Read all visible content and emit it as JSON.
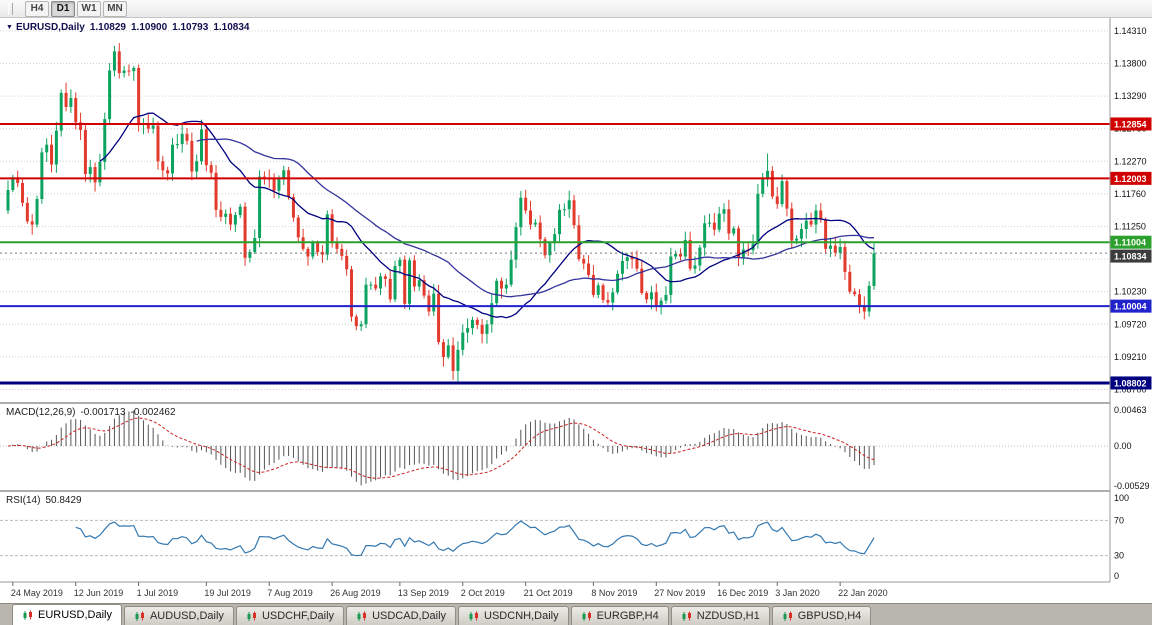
{
  "icons": {
    "symbol_marker": "▼"
  },
  "toolbar": {
    "timeframes": [
      "H4",
      "D1",
      "W1",
      "MN"
    ],
    "active": "D1"
  },
  "main_chart": {
    "header": {
      "symbol": "EURUSD,Daily",
      "open": "1.10829",
      "high": "1.10900",
      "low": "1.10793",
      "close": "1.10834"
    },
    "horizontal_lines": [
      {
        "price": 1.12854,
        "label": "1.12854",
        "color": "#d10000",
        "width": 2
      },
      {
        "price": 1.12003,
        "label": "1.12003",
        "color": "#d10000",
        "width": 2
      },
      {
        "price": 1.11004,
        "label": "1.11004",
        "color": "#2ca02c",
        "width": 2
      },
      {
        "price": 1.10004,
        "label": "1.10004",
        "color": "#2222cc",
        "width": 2
      },
      {
        "price": 1.08802,
        "label": "1.08802",
        "color": "#000080",
        "width": 3
      }
    ],
    "current_price": {
      "value": 1.10834,
      "label": "1.10834",
      "badge_color": "#3c3c3c"
    }
  },
  "macd_panel": {
    "name": "MACD(12,26,9)",
    "value_main": "-0.001713",
    "value_signal": "-0.002462",
    "axis_labels": [
      {
        "v": 0.00463,
        "t": "0.00463"
      },
      {
        "v": 0,
        "t": "0.00"
      },
      {
        "v": -0.00529,
        "t": "-0.00529"
      }
    ]
  },
  "rsi_panel": {
    "name": "RSI(14)",
    "value": "50.8429",
    "levels": [
      70,
      30
    ],
    "axis_labels": [
      {
        "v": 100,
        "t": "100"
      },
      {
        "v": 70,
        "t": "70"
      },
      {
        "v": 30,
        "t": "30"
      },
      {
        "v": 0,
        "t": "0"
      }
    ]
  },
  "tabbar": {
    "tabs": [
      {
        "label": "EURUSD,Daily",
        "active": true
      },
      {
        "label": "AUDUSD,Daily",
        "active": false
      },
      {
        "label": "USDCHF,Daily",
        "active": false
      },
      {
        "label": "USDCAD,Daily",
        "active": false
      },
      {
        "label": "USDCNH,Daily",
        "active": false
      },
      {
        "label": "EURGBP,H4",
        "active": false
      },
      {
        "label": "NZDUSD,H1",
        "active": false
      },
      {
        "label": "GBPUSD,H4",
        "active": false
      }
    ]
  },
  "colors": {
    "bull": "#0ba35f",
    "bear": "#e23a2c",
    "grid": "#d0d0d0",
    "ma1": "#000080",
    "ma2": "#34349c",
    "macd_hist": "#555555",
    "macd_signal": "#cc2222",
    "rsi": "#3579b1"
  },
  "chart_data": {
    "type": "candlestick",
    "symbol": "EURUSD",
    "timeframe": "Daily",
    "y_range": {
      "top": 1.14512,
      "bottom": 1.08504
    },
    "y_ticks": [
      "1.14310",
      "1.13800",
      "1.13290",
      "1.12780",
      "1.12270",
      "1.11760",
      "1.11250",
      "1.10740",
      "1.10230",
      "1.09720",
      "1.09210",
      "1.08700"
    ],
    "x_ticks": [
      {
        "label": "24 May 2019",
        "i": 1
      },
      {
        "label": "12 Jun 2019",
        "i": 14
      },
      {
        "label": "1 Jul 2019",
        "i": 27
      },
      {
        "label": "19 Jul 2019",
        "i": 41
      },
      {
        "label": "7 Aug 2019",
        "i": 54
      },
      {
        "label": "26 Aug 2019",
        "i": 67
      },
      {
        "label": "13 Sep 2019",
        "i": 81
      },
      {
        "label": "2 Oct 2019",
        "i": 94
      },
      {
        "label": "21 Oct 2019",
        "i": 107
      },
      {
        "label": "8 Nov 2019",
        "i": 121
      },
      {
        "label": "27 Nov 2019",
        "i": 134
      },
      {
        "label": "16 Dec 2019",
        "i": 147
      },
      {
        "label": "3 Jan 2020",
        "i": 159
      },
      {
        "label": "22 Jan 2020",
        "i": 172
      }
    ],
    "first_open": 1.115,
    "closes": [
      1.1182,
      1.1202,
      1.1193,
      1.1162,
      1.1133,
      1.1128,
      1.1168,
      1.1241,
      1.1253,
      1.1222,
      1.1275,
      1.1334,
      1.1312,
      1.1326,
      1.1288,
      1.1276,
      1.1207,
      1.1218,
      1.1194,
      1.1226,
      1.1293,
      1.1369,
      1.1399,
      1.1365,
      1.1369,
      1.1368,
      1.1373,
      1.1285,
      1.1286,
      1.1278,
      1.1283,
      1.1227,
      1.1213,
      1.1208,
      1.1253,
      1.1254,
      1.127,
      1.1259,
      1.1211,
      1.1227,
      1.1277,
      1.1221,
      1.1209,
      1.1151,
      1.114,
      1.1145,
      1.1128,
      1.1143,
      1.1156,
      1.1076,
      1.1085,
      1.1107,
      1.1203,
      1.12,
      1.1199,
      1.1181,
      1.1199,
      1.1213,
      1.1171,
      1.1139,
      1.1108,
      1.109,
      1.1078,
      1.1099,
      1.1085,
      1.1081,
      1.1144,
      1.1101,
      1.109,
      1.1079,
      1.1058,
      1.0984,
      1.0969,
      1.0972,
      1.1034,
      1.1034,
      1.1028,
      1.1047,
      1.1043,
      1.1011,
      1.1063,
      1.1073,
      1.1004,
      1.1072,
      1.1031,
      1.1041,
      1.1017,
      1.0992,
      1.102,
      1.0944,
      1.0921,
      1.0939,
      1.0899,
      1.0932,
      1.0959,
      1.0966,
      1.0979,
      1.0971,
      1.0957,
      1.0972,
      1.1005,
      1.104,
      1.1028,
      1.1034,
      1.1073,
      1.1124,
      1.117,
      1.115,
      1.1128,
      1.1131,
      1.1105,
      1.108,
      1.1099,
      1.1113,
      1.1151,
      1.1152,
      1.1166,
      1.1127,
      1.1074,
      1.1067,
      1.1049,
      1.1018,
      1.1033,
      1.101,
      1.1006,
      1.1022,
      1.1051,
      1.1071,
      1.1077,
      1.1074,
      1.1059,
      1.1021,
      1.1011,
      1.1022,
      1.1002,
      1.1009,
      1.1018,
      1.1078,
      1.1082,
      1.1078,
      1.1104,
      1.1059,
      1.1064,
      1.1092,
      1.113,
      1.1131,
      1.112,
      1.1145,
      1.1152,
      1.1114,
      1.1122,
      1.1077,
      1.1089,
      1.1088,
      1.1098,
      1.1176,
      1.1199,
      1.1212,
      1.1172,
      1.116,
      1.1196,
      1.1153,
      1.1103,
      1.1106,
      1.1121,
      1.1134,
      1.1128,
      1.115,
      1.1136,
      1.109,
      1.1095,
      1.1084,
      1.1093,
      1.1054,
      1.1023,
      1.1019,
      1.1,
      1.0992,
      1.1032,
      1.1083
    ],
    "wick_high_overrides": {
      "22": 1.1404,
      "23": 1.1412,
      "157": 1.1239
    },
    "wick_low_overrides": {
      "92": 1.0885,
      "93": 1.0879
    },
    "moving_averages": [
      {
        "period": 20,
        "color": "#000080"
      },
      {
        "period": 40,
        "color": "#34349c"
      }
    ],
    "macd": {
      "fast": 12,
      "slow": 26,
      "signal": 9
    },
    "rsi": {
      "period": 14
    }
  }
}
